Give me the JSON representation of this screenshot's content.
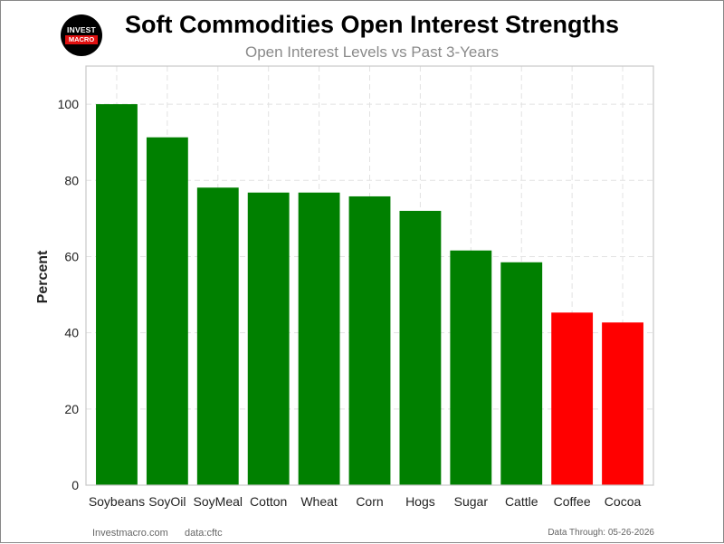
{
  "logo": {
    "top_text": "INVEST",
    "bottom_text": "MACRO"
  },
  "chart_data": {
    "type": "bar",
    "title": "Soft Commodities Open Interest Strengths",
    "subtitle": "Open Interest Levels vs Past 3-Years",
    "xlabel": "",
    "ylabel": "Percent",
    "ylim": [
      0,
      110
    ],
    "yticks": [
      0,
      20,
      40,
      60,
      80,
      100
    ],
    "grid": true,
    "categories": [
      "Soybeans",
      "SoyOil",
      "SoyMeal",
      "Cotton",
      "Wheat",
      "Corn",
      "Hogs",
      "Sugar",
      "Cattle",
      "Coffee",
      "Cocoa"
    ],
    "values": [
      100,
      91.3,
      78.1,
      76.8,
      76.8,
      75.8,
      72.0,
      61.6,
      58.5,
      45.3,
      42.7
    ],
    "colors": [
      "#008000",
      "#008000",
      "#008000",
      "#008000",
      "#008000",
      "#008000",
      "#008000",
      "#008000",
      "#008000",
      "#ff0000",
      "#ff0000"
    ]
  },
  "footer": {
    "site": "Investmacro.com",
    "source": "data:cftc",
    "data_through": "Data Through: 05-26-2026"
  }
}
